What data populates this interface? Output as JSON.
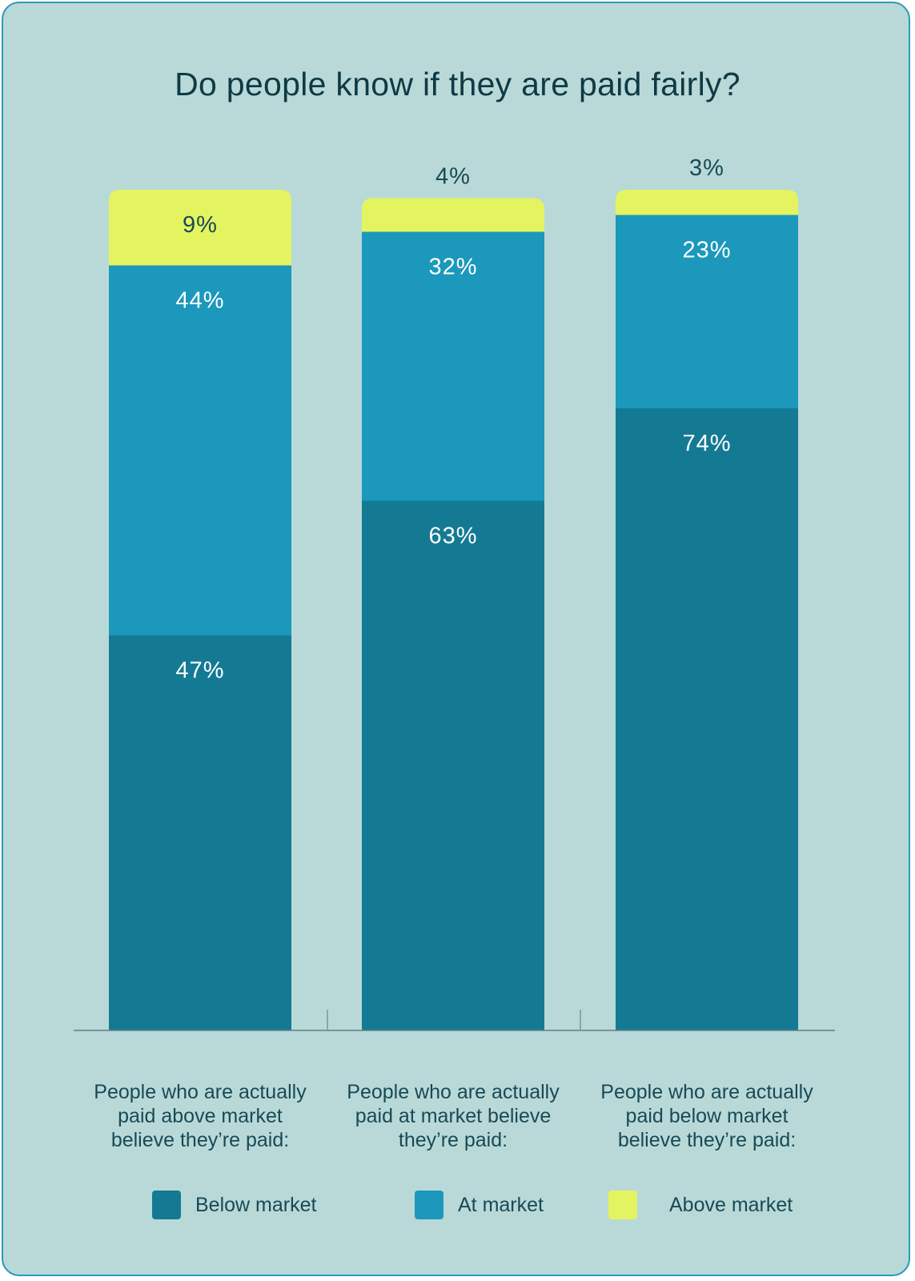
{
  "chart_data": {
    "type": "bar",
    "stacked": true,
    "title": "Do people know if they are paid fairly?",
    "categories": [
      "People who are actually paid above market believe they’re paid:",
      "People who are actually paid at market believe they’re paid:",
      "People who are actually paid below market believe they’re paid:"
    ],
    "category_lines": [
      [
        "People who are actually",
        "paid above market",
        "believe they’re paid:"
      ],
      [
        "People who are actually",
        "paid at market believe",
        "they’re paid:"
      ],
      [
        "People who are actually",
        "paid below market",
        "believe they’re paid:"
      ]
    ],
    "series": [
      {
        "name": "Below market",
        "values": [
          47,
          63,
          74
        ],
        "labels": [
          "47%",
          "63%",
          "74%"
        ],
        "color": "#147a94"
      },
      {
        "name": "At market",
        "values": [
          44,
          32,
          23
        ],
        "labels": [
          "44%",
          "32%",
          "23%"
        ],
        "color": "#1b98bb"
      },
      {
        "name": "Above market",
        "values": [
          9,
          4,
          3
        ],
        "labels": [
          "9%",
          "4%",
          "3%"
        ],
        "color": "#e3f460"
      }
    ],
    "ylim": [
      0,
      100
    ],
    "grid": false,
    "legend": "bottom"
  }
}
